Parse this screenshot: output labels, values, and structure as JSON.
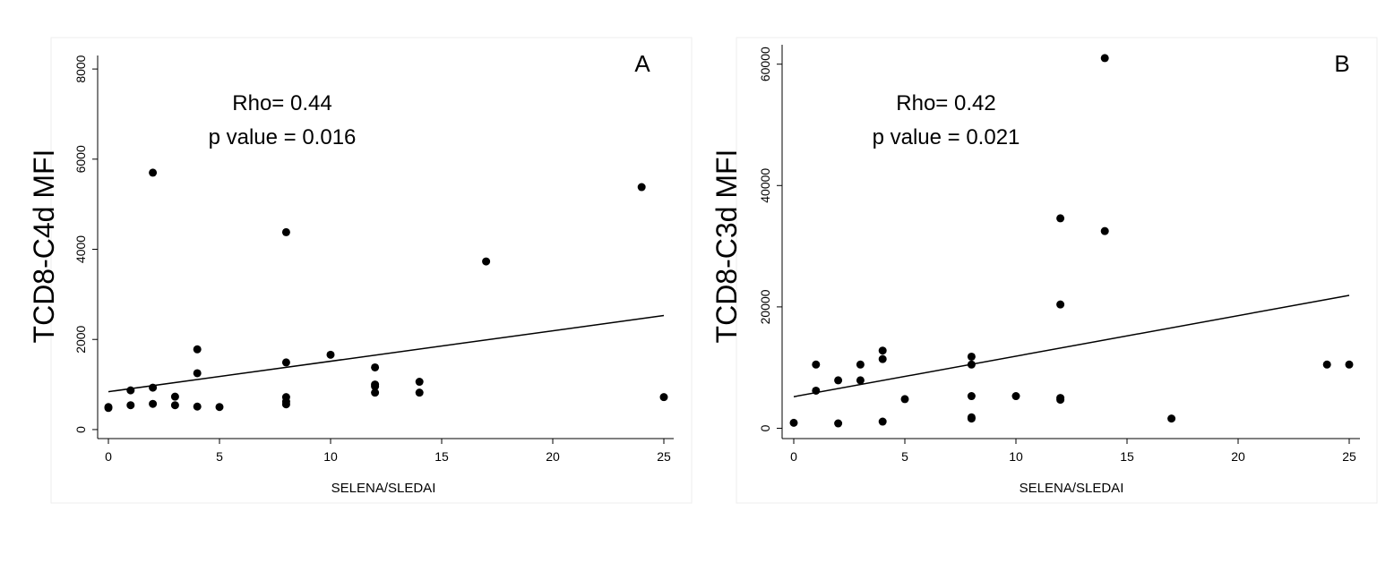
{
  "chart_data": [
    {
      "type": "scatter",
      "panel_label": "A",
      "xlabel": "SELENA/SLEDAI",
      "ylabel": "TCD8-C4d MFI",
      "xlim": [
        -0.5,
        25.5
      ],
      "ylim": [
        -200,
        8300
      ],
      "xticks": [
        0,
        5,
        10,
        15,
        20,
        25
      ],
      "yticks": [
        0,
        2000,
        4000,
        6000,
        8000
      ],
      "annotation_line1": "Rho= 0.44",
      "annotation_line2": "p value = 0.016",
      "grid": false,
      "points": [
        [
          0,
          480
        ],
        [
          0,
          500
        ],
        [
          1,
          540
        ],
        [
          1,
          870
        ],
        [
          2,
          570
        ],
        [
          2,
          930
        ],
        [
          2,
          5700
        ],
        [
          3,
          540
        ],
        [
          3,
          730
        ],
        [
          4,
          510
        ],
        [
          4,
          1250
        ],
        [
          4,
          1780
        ],
        [
          5,
          500
        ],
        [
          8,
          560
        ],
        [
          8,
          620
        ],
        [
          8,
          720
        ],
        [
          8,
          1490
        ],
        [
          8,
          4380
        ],
        [
          10,
          1660
        ],
        [
          12,
          820
        ],
        [
          12,
          960
        ],
        [
          12,
          1000
        ],
        [
          12,
          1380
        ],
        [
          14,
          820
        ],
        [
          14,
          1060
        ],
        [
          17,
          3730
        ],
        [
          24,
          5380
        ],
        [
          25,
          720
        ]
      ],
      "fit_line": [
        [
          0,
          840
        ],
        [
          25,
          2530
        ]
      ],
      "colors": {
        "points": "#000000",
        "line": "#000000"
      }
    },
    {
      "type": "scatter",
      "panel_label": "B",
      "xlabel": "SELENA/SLEDAI",
      "ylabel": "TCD8-C3d MFI",
      "xlim": [
        -0.5,
        25.5
      ],
      "ylim": [
        -1700,
        63200
      ],
      "xticks": [
        0,
        5,
        10,
        15,
        20,
        25
      ],
      "yticks": [
        0,
        20000,
        40000,
        60000
      ],
      "annotation_line1": "Rho= 0.42",
      "annotation_line2": "p value = 0.021",
      "grid": false,
      "points": [
        [
          0,
          900
        ],
        [
          1,
          6200
        ],
        [
          1,
          10500
        ],
        [
          2,
          800
        ],
        [
          2,
          7900
        ],
        [
          3,
          7900
        ],
        [
          3,
          10500
        ],
        [
          4,
          1100
        ],
        [
          4,
          11400
        ],
        [
          4,
          12800
        ],
        [
          5,
          4800
        ],
        [
          8,
          1600
        ],
        [
          8,
          1800
        ],
        [
          8,
          5300
        ],
        [
          8,
          10500
        ],
        [
          8,
          11800
        ],
        [
          10,
          5300
        ],
        [
          12,
          4700
        ],
        [
          12,
          5000
        ],
        [
          12,
          20400
        ],
        [
          12,
          34600
        ],
        [
          14,
          32500
        ],
        [
          14,
          61000
        ],
        [
          17,
          1600
        ],
        [
          24,
          10500
        ],
        [
          25,
          10500
        ]
      ],
      "fit_line": [
        [
          0,
          5200
        ],
        [
          25,
          21900
        ]
      ],
      "colors": {
        "points": "#000000",
        "line": "#000000"
      }
    }
  ]
}
